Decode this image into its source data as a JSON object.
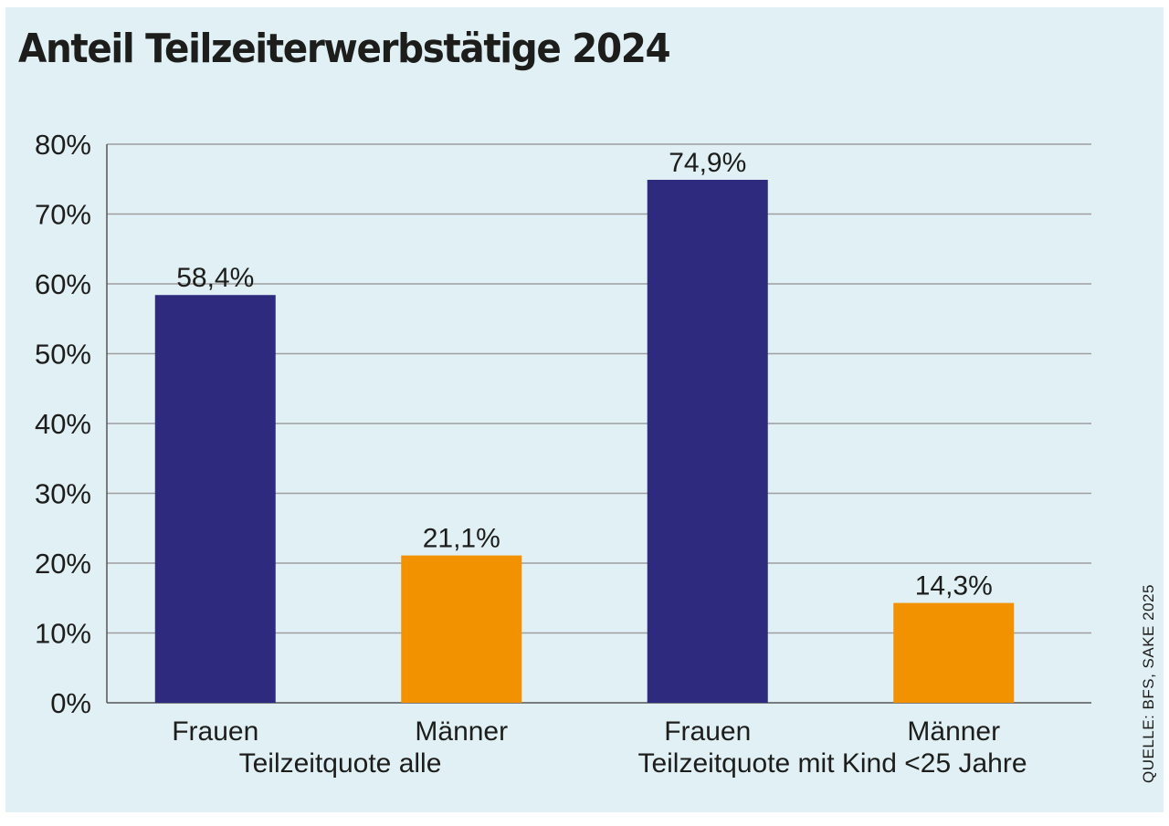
{
  "title": "Anteil Teilzeiterwerbstätige 2024",
  "source": "QUELLE: BFS, SAKE 2025",
  "colors": {
    "background": "#e0f0f5",
    "frauen": "#2e2a7e",
    "maenner": "#f39200",
    "grid": "#9e9e9e",
    "text": "#1d1d1b"
  },
  "chart_data": {
    "type": "bar",
    "title": "Anteil Teilzeiterwerbstätige 2024",
    "xlabel": "",
    "ylabel": "",
    "ylim": [
      0,
      80
    ],
    "yticks": [
      0,
      10,
      20,
      30,
      40,
      50,
      60,
      70,
      80
    ],
    "ytick_labels": [
      "0%",
      "10%",
      "20%",
      "30%",
      "40%",
      "50%",
      "60%",
      "70%",
      "80%"
    ],
    "grid": true,
    "legend": "none",
    "groups": [
      "Teilzeitquote alle",
      "Teilzeitquote mit Kind <25 Jahre"
    ],
    "bars": [
      {
        "group": 0,
        "category": "Frauen",
        "value": 58.4,
        "label": "58,4%",
        "color": "#2e2a7e"
      },
      {
        "group": 0,
        "category": "Männer",
        "value": 21.1,
        "label": "21,1%",
        "color": "#f39200"
      },
      {
        "group": 1,
        "category": "Frauen",
        "value": 74.9,
        "label": "74,9%",
        "color": "#2e2a7e"
      },
      {
        "group": 1,
        "category": "Männer",
        "value": 14.3,
        "label": "14,3%",
        "color": "#f39200"
      }
    ]
  }
}
